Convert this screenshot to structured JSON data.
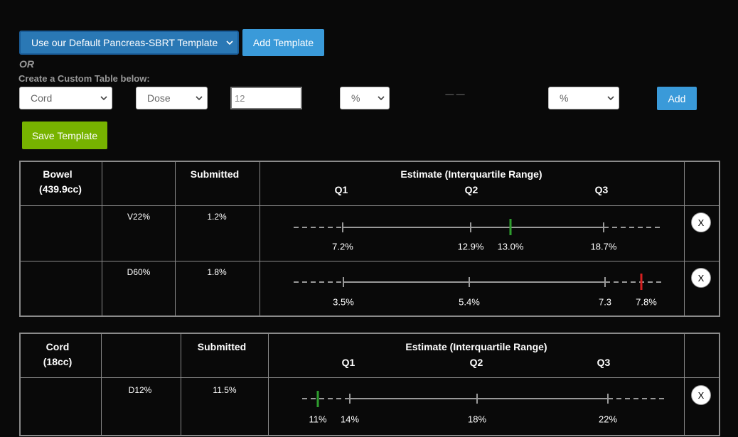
{
  "template_select": "Use our Default Pancreas-SBRT Template",
  "add_template_button": "Add Template",
  "or_label": "OR",
  "custom_table_label": "Create a Custom Table below:",
  "custom_row": {
    "structure": "Cord",
    "metric": "Dose",
    "value": "12",
    "unit_1": "%",
    "separator": "— —",
    "unit_2": "%",
    "add_button": "Add"
  },
  "save_button": "Save Template",
  "tables": [
    {
      "structure": "Bowel",
      "volume": "(439.9cc)",
      "submitted_header": "Submitted",
      "estimate_header": "Estimate (Interquartile Range)",
      "quartile_headers": [
        "Q1",
        "Q2",
        "Q3"
      ],
      "rows": [
        {
          "metric": "V22%",
          "submitted": "1.2%",
          "range_labels": [
            "7.2%",
            "12.9%",
            "13.0%",
            "18.7%"
          ],
          "remove": "X"
        },
        {
          "metric": "D60%",
          "submitted": "1.8%",
          "range_labels": [
            "3.5%",
            "5.4%",
            "7.3",
            "7.8%"
          ],
          "remove": "X"
        }
      ]
    },
    {
      "structure": "Cord",
      "volume": "(18cc)",
      "submitted_header": "Submitted",
      "estimate_header": "Estimate (Interquartile Range)",
      "quartile_headers": [
        "Q1",
        "Q2",
        "Q3"
      ],
      "rows": [
        {
          "metric": "D12%",
          "submitted": "11.5%",
          "range_labels": [
            "11%",
            "14%",
            "18%",
            "22%"
          ],
          "remove": "X"
        }
      ]
    }
  ]
}
